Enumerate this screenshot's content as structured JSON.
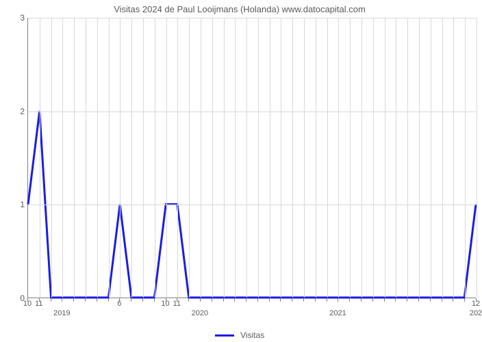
{
  "chart": {
    "type": "line",
    "title": "Visitas 2024 de Paul Looijmans (Holanda) www.datocapital.com",
    "title_fontsize": 13,
    "title_color": "#5a5a5a",
    "background_color": "#ffffff",
    "grid_color": "#d8d8d8",
    "axis_color": "#808080",
    "tick_label_color": "#5a5a5a",
    "tick_label_fontsize": 12,
    "line_color": "#1a1ae6",
    "line_width": 3,
    "legend_label": "Visitas",
    "ylim": [
      0,
      3
    ],
    "y_ticks": [
      0,
      1,
      2,
      3
    ],
    "x_count": 40,
    "x_minor_ticks_every": 1,
    "x_month_labels": [
      {
        "index": 0,
        "text": "10"
      },
      {
        "index": 1,
        "text": "11"
      },
      {
        "index": 8,
        "text": "6"
      },
      {
        "index": 12,
        "text": "10"
      },
      {
        "index": 13,
        "text": "11"
      },
      {
        "index": 39,
        "text": "12"
      }
    ],
    "x_year_labels": [
      {
        "index": 3,
        "text": "2019"
      },
      {
        "index": 15,
        "text": "2020"
      },
      {
        "index": 27,
        "text": "2021"
      },
      {
        "index": 39,
        "text": "202"
      }
    ],
    "series": [
      {
        "name": "Visitas",
        "values": [
          1,
          2,
          0,
          0,
          0,
          0,
          0,
          0,
          1,
          0,
          0,
          0,
          1,
          1,
          0,
          0,
          0,
          0,
          0,
          0,
          0,
          0,
          0,
          0,
          0,
          0,
          0,
          0,
          0,
          0,
          0,
          0,
          0,
          0,
          0,
          0,
          0,
          0,
          0,
          1
        ]
      }
    ]
  }
}
